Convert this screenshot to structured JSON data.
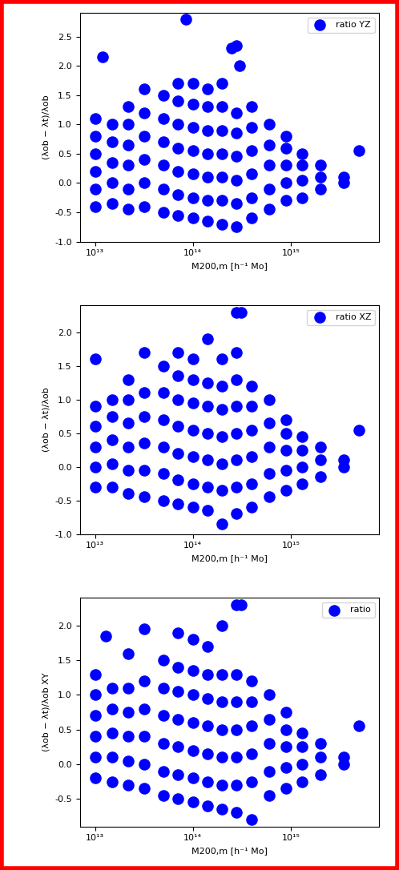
{
  "chart_data": [
    {
      "type": "scatter",
      "log": "x",
      "legend": "upper right",
      "xlabel": "M200,m [h⁻¹ Mo]",
      "ylabel": "(λob − λt)/λob",
      "xlim": [
        7000000000000.0,
        8000000000000000.0
      ],
      "xticks": [
        {
          "value": 10000000000000.0,
          "label": "10¹³"
        },
        {
          "value": 100000000000000.0,
          "label": "10¹⁴"
        },
        {
          "value": 1000000000000000.0,
          "label": "10¹⁵"
        }
      ],
      "ylim": [
        -1.0,
        2.9
      ],
      "yticks": [
        -1.0,
        -0.5,
        0.0,
        0.5,
        1.0,
        1.5,
        2.0,
        2.5
      ],
      "series": [
        {
          "name": "ratio YZ",
          "color": "#0000ff",
          "marker": "o",
          "x": [
            10000000000000.0,
            10000000000000.0,
            10000000000000.0,
            10000000000000.0,
            10000000000000.0,
            10000000000000.0,
            12000000000000.0,
            15000000000000.0,
            15000000000000.0,
            15000000000000.0,
            15000000000000.0,
            15000000000000.0,
            22000000000000.0,
            22000000000000.0,
            22000000000000.0,
            22000000000000.0,
            22000000000000.0,
            22000000000000.0,
            32000000000000.0,
            32000000000000.0,
            32000000000000.0,
            32000000000000.0,
            32000000000000.0,
            32000000000000.0,
            50000000000000.0,
            50000000000000.0,
            50000000000000.0,
            50000000000000.0,
            50000000000000.0,
            50000000000000.0,
            70000000000000.0,
            70000000000000.0,
            70000000000000.0,
            70000000000000.0,
            70000000000000.0,
            70000000000000.0,
            70000000000000.0,
            85000000000000.0,
            100000000000000.0,
            100000000000000.0,
            100000000000000.0,
            100000000000000.0,
            100000000000000.0,
            100000000000000.0,
            100000000000000.0,
            140000000000000.0,
            140000000000000.0,
            140000000000000.0,
            140000000000000.0,
            140000000000000.0,
            140000000000000.0,
            140000000000000.0,
            200000000000000.0,
            200000000000000.0,
            200000000000000.0,
            200000000000000.0,
            200000000000000.0,
            200000000000000.0,
            200000000000000.0,
            250000000000000.0,
            280000000000000.0,
            280000000000000.0,
            280000000000000.0,
            280000000000000.0,
            280000000000000.0,
            280000000000000.0,
            280000000000000.0,
            300000000000000.0,
            400000000000000.0,
            400000000000000.0,
            400000000000000.0,
            400000000000000.0,
            400000000000000.0,
            400000000000000.0,
            600000000000000.0,
            600000000000000.0,
            600000000000000.0,
            600000000000000.0,
            600000000000000.0,
            900000000000000.0,
            900000000000000.0,
            900000000000000.0,
            900000000000000.0,
            900000000000000.0,
            1300000000000000.0,
            1300000000000000.0,
            1300000000000000.0,
            1300000000000000.0,
            2000000000000000.0,
            2000000000000000.0,
            2000000000000000.0,
            3500000000000000.0,
            3500000000000000.0,
            5000000000000000.0
          ],
          "values": [
            -0.4,
            -0.1,
            0.2,
            0.5,
            0.8,
            1.1,
            2.15,
            -0.35,
            0.0,
            0.35,
            0.7,
            1.0,
            -0.45,
            -0.1,
            0.3,
            0.65,
            1.0,
            1.3,
            -0.4,
            0.0,
            0.4,
            0.8,
            1.2,
            1.6,
            -0.5,
            -0.1,
            0.3,
            0.7,
            1.1,
            1.5,
            -0.55,
            -0.2,
            0.2,
            0.6,
            1.0,
            1.4,
            1.7,
            2.8,
            -0.6,
            -0.25,
            0.15,
            0.55,
            0.95,
            1.35,
            1.7,
            -0.65,
            -0.3,
            0.1,
            0.5,
            0.9,
            1.3,
            1.6,
            -0.7,
            -0.3,
            0.1,
            0.5,
            0.9,
            1.3,
            1.7,
            2.3,
            -0.75,
            -0.35,
            0.05,
            0.45,
            0.85,
            1.2,
            2.35,
            2.0,
            -0.6,
            -0.25,
            0.15,
            0.55,
            0.95,
            1.3,
            -0.45,
            -0.1,
            0.3,
            0.65,
            1.0,
            -0.3,
            0.0,
            0.3,
            0.6,
            0.8,
            -0.25,
            0.05,
            0.3,
            0.5,
            -0.1,
            0.1,
            0.3,
            0.0,
            0.1,
            0.55
          ]
        }
      ]
    },
    {
      "type": "scatter",
      "log": "x",
      "legend": "upper right",
      "xlabel": "M200,m [h⁻¹ Mo]",
      "ylabel": "(λob − λt)/λob",
      "xlim": [
        7000000000000.0,
        8000000000000000.0
      ],
      "xticks": [
        {
          "value": 10000000000000.0,
          "label": "10¹³"
        },
        {
          "value": 100000000000000.0,
          "label": "10¹⁴"
        },
        {
          "value": 1000000000000000.0,
          "label": "10¹⁵"
        }
      ],
      "ylim": [
        -1.0,
        2.4
      ],
      "yticks": [
        -1.0,
        -0.5,
        0.0,
        0.5,
        1.0,
        1.5,
        2.0
      ],
      "series": [
        {
          "name": "ratio XZ",
          "color": "#0000ff",
          "marker": "o",
          "x": [
            10000000000000.0,
            10000000000000.0,
            10000000000000.0,
            10000000000000.0,
            10000000000000.0,
            10000000000000.0,
            15000000000000.0,
            15000000000000.0,
            15000000000000.0,
            15000000000000.0,
            15000000000000.0,
            22000000000000.0,
            22000000000000.0,
            22000000000000.0,
            22000000000000.0,
            22000000000000.0,
            22000000000000.0,
            32000000000000.0,
            32000000000000.0,
            32000000000000.0,
            32000000000000.0,
            32000000000000.0,
            32000000000000.0,
            50000000000000.0,
            50000000000000.0,
            50000000000000.0,
            50000000000000.0,
            50000000000000.0,
            50000000000000.0,
            70000000000000.0,
            70000000000000.0,
            70000000000000.0,
            70000000000000.0,
            70000000000000.0,
            70000000000000.0,
            70000000000000.0,
            100000000000000.0,
            100000000000000.0,
            100000000000000.0,
            100000000000000.0,
            100000000000000.0,
            100000000000000.0,
            100000000000000.0,
            140000000000000.0,
            140000000000000.0,
            140000000000000.0,
            140000000000000.0,
            140000000000000.0,
            140000000000000.0,
            140000000000000.0,
            200000000000000.0,
            200000000000000.0,
            200000000000000.0,
            200000000000000.0,
            200000000000000.0,
            200000000000000.0,
            200000000000000.0,
            280000000000000.0,
            280000000000000.0,
            280000000000000.0,
            280000000000000.0,
            280000000000000.0,
            280000000000000.0,
            280000000000000.0,
            280000000000000.0,
            310000000000000.0,
            400000000000000.0,
            400000000000000.0,
            400000000000000.0,
            400000000000000.0,
            400000000000000.0,
            400000000000000.0,
            600000000000000.0,
            600000000000000.0,
            600000000000000.0,
            600000000000000.0,
            600000000000000.0,
            900000000000000.0,
            900000000000000.0,
            900000000000000.0,
            900000000000000.0,
            900000000000000.0,
            1300000000000000.0,
            1300000000000000.0,
            1300000000000000.0,
            1300000000000000.0,
            2000000000000000.0,
            2000000000000000.0,
            2000000000000000.0,
            3500000000000000.0,
            3500000000000000.0,
            5000000000000000.0
          ],
          "values": [
            -0.3,
            0.0,
            0.3,
            0.6,
            0.9,
            1.6,
            -0.3,
            0.05,
            0.4,
            0.75,
            1.0,
            -0.4,
            -0.05,
            0.3,
            0.65,
            1.0,
            1.3,
            -0.45,
            -0.05,
            0.35,
            0.75,
            1.1,
            1.7,
            -0.5,
            -0.1,
            0.3,
            0.7,
            1.1,
            1.5,
            -0.55,
            -0.2,
            0.2,
            0.6,
            1.0,
            1.35,
            1.7,
            -0.6,
            -0.25,
            0.15,
            0.55,
            0.95,
            1.3,
            1.6,
            -0.65,
            -0.3,
            0.1,
            0.5,
            0.9,
            1.25,
            1.9,
            -0.85,
            -0.35,
            0.05,
            0.45,
            0.85,
            1.2,
            1.6,
            -0.7,
            -0.3,
            0.1,
            0.5,
            0.9,
            1.3,
            1.7,
            2.3,
            2.3,
            -0.6,
            -0.25,
            0.15,
            0.55,
            0.9,
            1.2,
            -0.45,
            -0.1,
            0.3,
            0.65,
            1.0,
            -0.35,
            -0.05,
            0.25,
            0.5,
            0.7,
            -0.25,
            0.0,
            0.25,
            0.45,
            -0.15,
            0.1,
            0.3,
            0.0,
            0.1,
            0.55
          ]
        }
      ]
    },
    {
      "type": "scatter",
      "log": "x",
      "legend": "upper right",
      "xlabel": "M200,m [h⁻¹ Mo]",
      "ylabel": "(λob − λt)/λob XY",
      "xlim": [
        7000000000000.0,
        8000000000000000.0
      ],
      "xticks": [
        {
          "value": 10000000000000.0,
          "label": "10¹³"
        },
        {
          "value": 100000000000000.0,
          "label": "10¹⁴"
        },
        {
          "value": 1000000000000000.0,
          "label": "10¹⁵"
        }
      ],
      "ylim": [
        -0.9,
        2.4
      ],
      "yticks": [
        -0.5,
        0.0,
        0.5,
        1.0,
        1.5,
        2.0
      ],
      "series": [
        {
          "name": "ratio",
          "color": "#0000ff",
          "marker": "o",
          "x": [
            10000000000000.0,
            10000000000000.0,
            10000000000000.0,
            10000000000000.0,
            10000000000000.0,
            10000000000000.0,
            13000000000000.0,
            15000000000000.0,
            15000000000000.0,
            15000000000000.0,
            15000000000000.0,
            15000000000000.0,
            22000000000000.0,
            22000000000000.0,
            22000000000000.0,
            22000000000000.0,
            22000000000000.0,
            22000000000000.0,
            32000000000000.0,
            32000000000000.0,
            32000000000000.0,
            32000000000000.0,
            32000000000000.0,
            32000000000000.0,
            50000000000000.0,
            50000000000000.0,
            50000000000000.0,
            50000000000000.0,
            50000000000000.0,
            50000000000000.0,
            70000000000000.0,
            70000000000000.0,
            70000000000000.0,
            70000000000000.0,
            70000000000000.0,
            70000000000000.0,
            70000000000000.0,
            100000000000000.0,
            100000000000000.0,
            100000000000000.0,
            100000000000000.0,
            100000000000000.0,
            100000000000000.0,
            100000000000000.0,
            140000000000000.0,
            140000000000000.0,
            140000000000000.0,
            140000000000000.0,
            140000000000000.0,
            140000000000000.0,
            140000000000000.0,
            200000000000000.0,
            200000000000000.0,
            200000000000000.0,
            200000000000000.0,
            200000000000000.0,
            200000000000000.0,
            200000000000000.0,
            280000000000000.0,
            280000000000000.0,
            280000000000000.0,
            280000000000000.0,
            280000000000000.0,
            280000000000000.0,
            280000000000000.0,
            310000000000000.0,
            400000000000000.0,
            400000000000000.0,
            400000000000000.0,
            400000000000000.0,
            400000000000000.0,
            400000000000000.0,
            600000000000000.0,
            600000000000000.0,
            600000000000000.0,
            600000000000000.0,
            600000000000000.0,
            900000000000000.0,
            900000000000000.0,
            900000000000000.0,
            900000000000000.0,
            900000000000000.0,
            1300000000000000.0,
            1300000000000000.0,
            1300000000000000.0,
            1300000000000000.0,
            2000000000000000.0,
            2000000000000000.0,
            2000000000000000.0,
            3500000000000000.0,
            3500000000000000.0,
            5000000000000000.0
          ],
          "values": [
            -0.2,
            0.1,
            0.4,
            0.7,
            1.0,
            1.3,
            1.85,
            -0.25,
            0.1,
            0.45,
            0.8,
            1.1,
            -0.3,
            0.05,
            0.4,
            0.75,
            1.1,
            1.6,
            -0.35,
            0.0,
            0.4,
            0.8,
            1.2,
            1.95,
            -0.45,
            -0.1,
            0.3,
            0.7,
            1.1,
            1.5,
            -0.5,
            -0.15,
            0.25,
            0.65,
            1.05,
            1.4,
            1.9,
            -0.55,
            -0.2,
            0.2,
            0.6,
            1.0,
            1.35,
            1.8,
            -0.6,
            -0.25,
            0.15,
            0.55,
            0.95,
            1.3,
            1.7,
            -0.65,
            -0.3,
            0.1,
            0.5,
            0.9,
            1.3,
            2.0,
            -0.7,
            -0.3,
            0.1,
            0.5,
            0.9,
            1.3,
            2.3,
            2.3,
            -0.8,
            -0.25,
            0.15,
            0.55,
            0.9,
            1.2,
            -0.45,
            -0.1,
            0.3,
            0.65,
            1.0,
            -0.35,
            -0.05,
            0.25,
            0.5,
            0.75,
            -0.25,
            0.0,
            0.25,
            0.45,
            -0.15,
            0.1,
            0.3,
            0.0,
            0.1,
            0.55
          ]
        }
      ]
    }
  ]
}
